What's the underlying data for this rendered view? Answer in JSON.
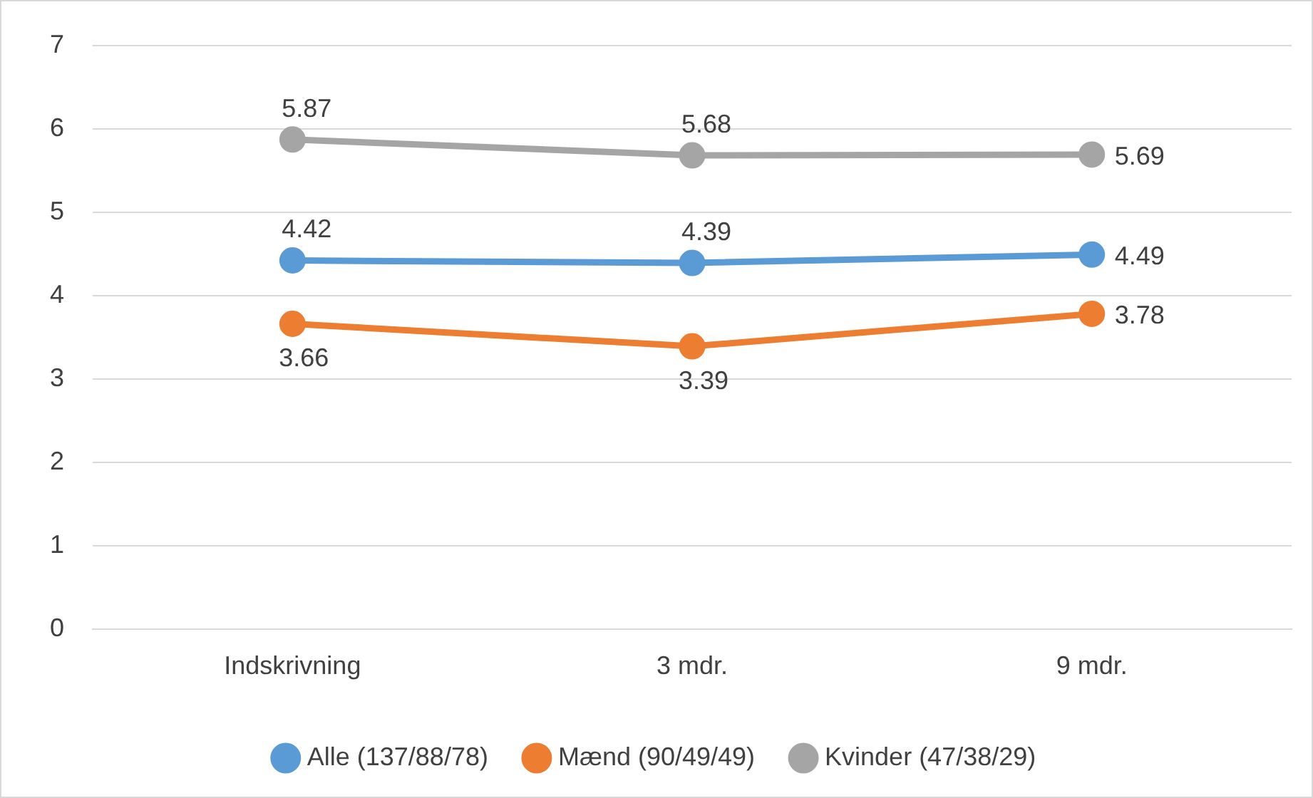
{
  "chart_data": {
    "type": "line",
    "categories": [
      "Indskrivning",
      "3 mdr.",
      "9 mdr."
    ],
    "series": [
      {
        "name": "Alle (137/88/78)",
        "color": "#5b9bd5",
        "values": [
          4.42,
          4.39,
          4.49
        ]
      },
      {
        "name": "Mænd (90/49/49)",
        "color": "#ed7d31",
        "values": [
          3.66,
          3.39,
          3.78
        ]
      },
      {
        "name": "Kvinder (47/38/29)",
        "color": "#a5a5a5",
        "values": [
          5.87,
          5.68,
          5.69
        ]
      }
    ],
    "ylim": [
      0,
      7
    ],
    "yticks": [
      0,
      1,
      2,
      3,
      4,
      5,
      6,
      7
    ],
    "grid": "y",
    "legend": "bottom",
    "marker": "circle",
    "line_style": "solid",
    "data_labels": true
  }
}
